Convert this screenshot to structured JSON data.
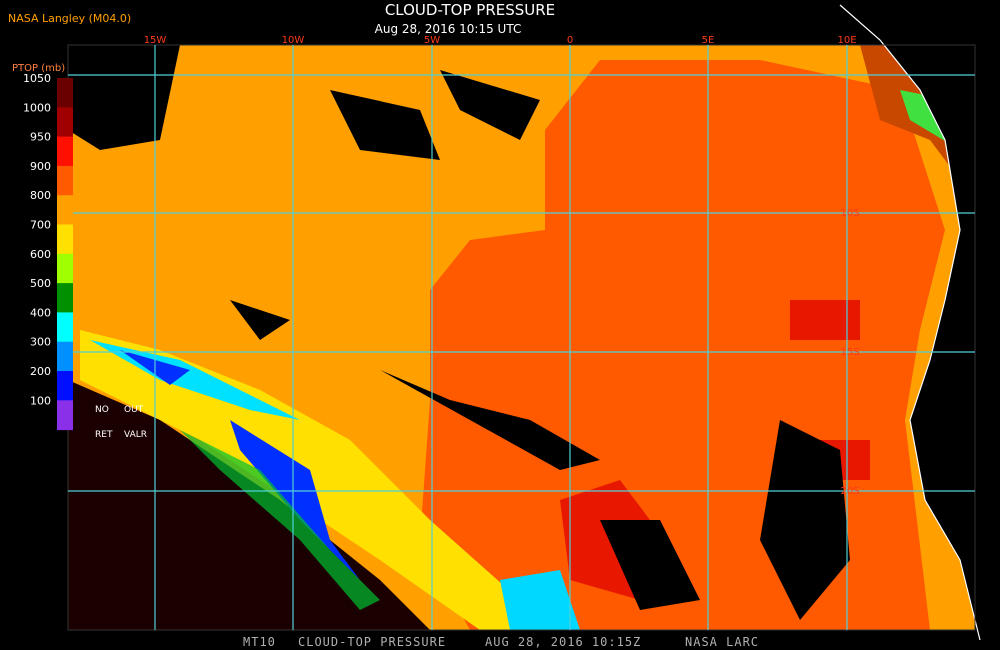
{
  "header": {
    "source": "NASA Langley (M04.0)",
    "title": "CLOUD-TOP PRESSURE",
    "subtitle": "Aug 28, 2016 10:15 UTC"
  },
  "legend": {
    "title": "PTOP (mb)",
    "labels": [
      "1050",
      "1000",
      "950",
      "900",
      "800",
      "700",
      "600",
      "500",
      "400",
      "300",
      "200",
      "100"
    ],
    "no_retrieval": [
      "NO",
      "OUT",
      "RET",
      "VALR"
    ]
  },
  "grid_labels": {
    "longitudes": [
      "15W",
      "10W",
      "5W",
      "0",
      "5E",
      "10E"
    ],
    "latitudes": [
      "10S",
      "15S",
      "20S"
    ]
  },
  "footer": [
    "MT10",
    "CLOUD-TOP PRESSURE",
    "AUG 28, 2016 10:15Z",
    "NASA LARC"
  ]
}
